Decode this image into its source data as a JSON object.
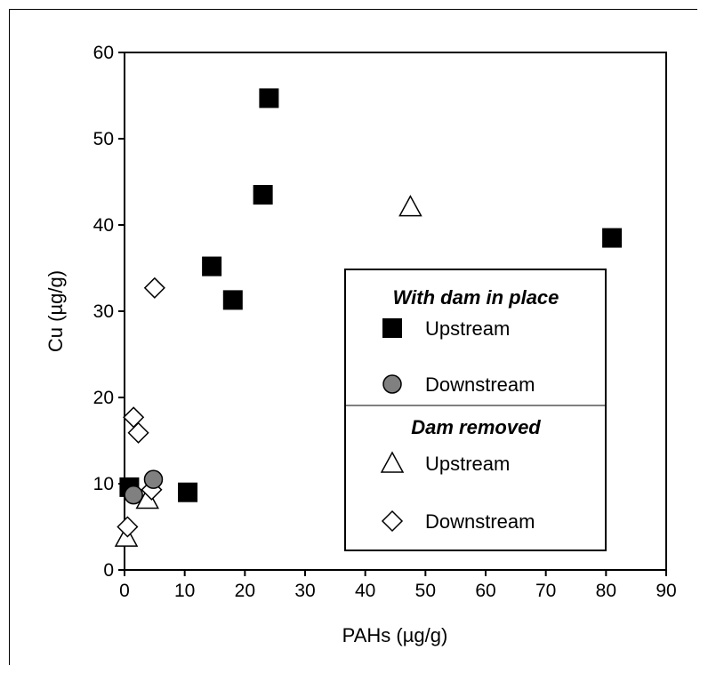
{
  "chart_data": {
    "type": "scatter",
    "xlabel": "PAHs (µg/g)",
    "ylabel": "Cu (µg/g)",
    "xlim": [
      0,
      90
    ],
    "ylim": [
      0,
      60
    ],
    "xticks": [
      0,
      10,
      20,
      30,
      40,
      50,
      60,
      70,
      80,
      90
    ],
    "yticks": [
      0,
      10,
      20,
      30,
      40,
      50,
      60
    ],
    "grid": false,
    "legend": {
      "placement": "right",
      "groups": [
        {
          "title": "With dam in place",
          "items": [
            "Upstream",
            "Downstream"
          ]
        },
        {
          "title": "Dam removed",
          "items": [
            "Upstream",
            "Downstream"
          ]
        }
      ]
    },
    "series": [
      {
        "group": "With dam in place",
        "name": "Upstream",
        "marker": "filled-square",
        "color": "#000000",
        "points": [
          [
            0.8,
            9.6
          ],
          [
            10.5,
            9.0
          ],
          [
            14.5,
            35.2
          ],
          [
            18.0,
            31.3
          ],
          [
            23.0,
            43.5
          ],
          [
            24.0,
            54.7
          ],
          [
            81.0,
            38.5
          ]
        ]
      },
      {
        "group": "With dam in place",
        "name": "Downstream",
        "marker": "filled-circle",
        "color": "#808080",
        "points": [
          [
            1.5,
            8.7
          ],
          [
            4.8,
            10.5
          ]
        ]
      },
      {
        "group": "Dam removed",
        "name": "Upstream",
        "marker": "open-triangle",
        "color": "#000000",
        "points": [
          [
            0.3,
            3.8
          ],
          [
            3.8,
            8.2
          ],
          [
            47.5,
            42.1
          ]
        ]
      },
      {
        "group": "Dam removed",
        "name": "Downstream",
        "marker": "open-diamond",
        "color": "#000000",
        "points": [
          [
            0.5,
            5.0
          ],
          [
            1.5,
            17.7
          ],
          [
            2.3,
            15.9
          ],
          [
            4.5,
            9.3
          ],
          [
            5.0,
            32.7
          ]
        ]
      }
    ]
  }
}
